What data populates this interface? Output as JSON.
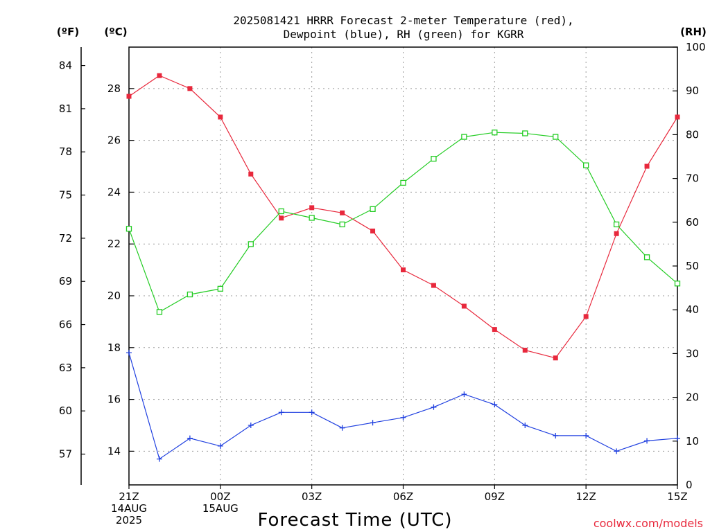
{
  "chart_data": {
    "type": "line",
    "title_line1": "2025081421 HRRR Forecast 2-meter Temperature (red),",
    "title_line2": "Dewpoint (blue), RH (green) for KGRR",
    "xlabel": "Forecast Time (UTC)",
    "credit": "coolwx.com/models",
    "units": {
      "fahrenheit": "(ºF)",
      "celsius": "(ºC)",
      "rh": "(RH)"
    },
    "x_hours": [
      0,
      1,
      2,
      3,
      4,
      5,
      6,
      7,
      8,
      9,
      10,
      11,
      12,
      13,
      14,
      15,
      16,
      17,
      18
    ],
    "x_ticks": [
      {
        "hour": 0,
        "lines": [
          "21Z",
          "14AUG",
          "2025"
        ]
      },
      {
        "hour": 3,
        "lines": [
          "00Z",
          "15AUG"
        ]
      },
      {
        "hour": 6,
        "lines": [
          "03Z"
        ]
      },
      {
        "hour": 9,
        "lines": [
          "06Z"
        ]
      },
      {
        "hour": 12,
        "lines": [
          "09Z"
        ]
      },
      {
        "hour": 15,
        "lines": [
          "12Z"
        ]
      },
      {
        "hour": 18,
        "lines": [
          "15Z"
        ]
      }
    ],
    "xlim": [
      0,
      18
    ],
    "celsius_axis": {
      "ylim": [
        12.7,
        29.6
      ],
      "ticks": [
        14,
        16,
        18,
        20,
        22,
        24,
        26,
        28
      ]
    },
    "fahrenheit_axis": {
      "ticks": [
        57,
        60,
        63,
        66,
        69,
        72,
        75,
        78,
        81,
        84
      ]
    },
    "rh_axis": {
      "ylim": [
        0,
        100
      ],
      "ticks": [
        0,
        10,
        20,
        30,
        40,
        50,
        60,
        70,
        80,
        90,
        100
      ]
    },
    "grid": true,
    "series": [
      {
        "name": "Temperature",
        "axis": "celsius",
        "color": "#e8283c",
        "marker": "filled-square",
        "values": [
          27.7,
          28.5,
          28.0,
          26.9,
          24.7,
          23.0,
          23.4,
          23.2,
          22.5,
          21.0,
          20.4,
          19.6,
          18.7,
          17.9,
          17.6,
          19.2,
          22.4,
          25.0,
          26.9
        ]
      },
      {
        "name": "Dewpoint",
        "axis": "celsius",
        "color": "#2040e0",
        "marker": "plus",
        "values": [
          17.8,
          13.7,
          14.5,
          14.2,
          15.0,
          15.5,
          15.5,
          14.9,
          15.1,
          15.3,
          15.7,
          16.2,
          15.8,
          15.0,
          14.6,
          14.6,
          14.0,
          14.4,
          14.5
        ]
      },
      {
        "name": "RH",
        "axis": "rh",
        "color": "#22cc22",
        "marker": "open-square",
        "values": [
          58.5,
          39.5,
          43.5,
          44.8,
          55.0,
          62.5,
          61.0,
          59.5,
          63.0,
          69.0,
          74.5,
          79.5,
          80.5,
          80.3,
          79.5,
          73.0,
          59.5,
          52.0,
          46.0
        ]
      }
    ]
  }
}
